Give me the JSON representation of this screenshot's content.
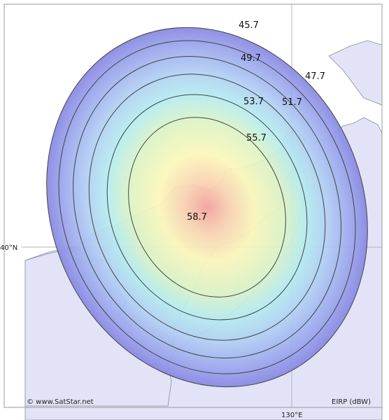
{
  "map": {
    "latitude_label": "40°N",
    "longitude_label": "130°E",
    "copyright": "© www.SatStar.net",
    "units_label": "EIRP (dBW)",
    "contours": [
      {
        "value": 45.7,
        "label": "45.7"
      },
      {
        "value": 47.7,
        "label": "47.7"
      },
      {
        "value": 49.7,
        "label": "49.7"
      },
      {
        "value": 51.7,
        "label": "51.7"
      },
      {
        "value": 53.7,
        "label": "53.7"
      },
      {
        "value": 55.7,
        "label": "55.7"
      },
      {
        "value": 58.7,
        "label": "58.7"
      }
    ]
  },
  "colors": {
    "land": "#e3e3f8",
    "sea": "#ffffff",
    "grid": "#bbbbbb",
    "contour_line": "#444444",
    "outer_band": "#8f8fe6",
    "core": "#f6a39a"
  }
}
